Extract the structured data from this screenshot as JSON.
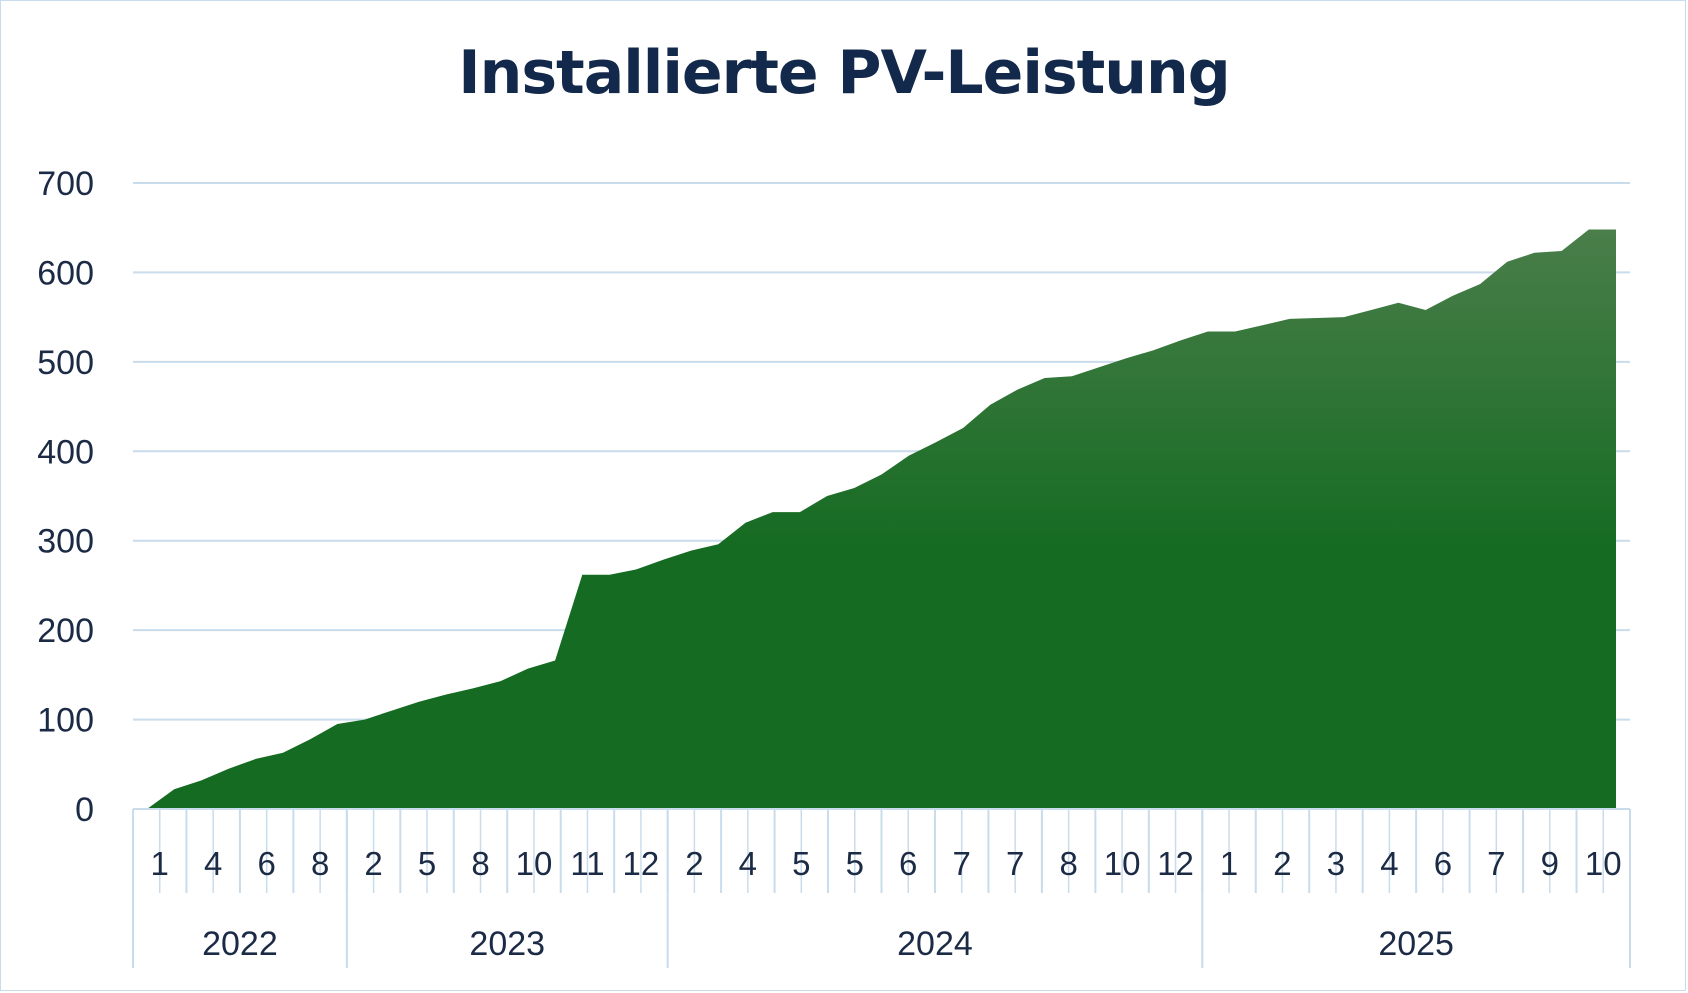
{
  "chart_data": {
    "type": "area",
    "title": "Installierte PV-Leistung",
    "xlabel": "",
    "ylabel": "",
    "ylim": [
      0,
      700
    ],
    "yticks": [
      0,
      100,
      200,
      300,
      400,
      500,
      600,
      700
    ],
    "grid": true,
    "legend": "none",
    "x_month_labels": [
      "1",
      "4",
      "6",
      "8",
      "2",
      "5",
      "8",
      "10",
      "11",
      "12",
      "2",
      "4",
      "5",
      "5",
      "6",
      "7",
      "7",
      "8",
      "10",
      "12",
      "1",
      "2",
      "3",
      "4",
      "6",
      "7",
      "9",
      "10"
    ],
    "years": [
      {
        "label": "2022",
        "start_label_index": 0,
        "label_count": 4
      },
      {
        "label": "2023",
        "start_label_index": 4,
        "label_count": 6
      },
      {
        "label": "2024",
        "start_label_index": 10,
        "label_count": 10
      },
      {
        "label": "2025",
        "start_label_index": 20,
        "label_count": 8
      }
    ],
    "series": [
      {
        "values": [
          0,
          22,
          32,
          45,
          56,
          63,
          78,
          95,
          100,
          110,
          120,
          128,
          135,
          143,
          157,
          166,
          262,
          262,
          268,
          279,
          289,
          296,
          320,
          332,
          332,
          350,
          359,
          374,
          395,
          410,
          426,
          452,
          469,
          482,
          484,
          494,
          504,
          513,
          524,
          534,
          534,
          541,
          548,
          549,
          550,
          558,
          566,
          558,
          574,
          587,
          612,
          622,
          624,
          648,
          648
        ],
        "color": "#156b22",
        "color_top": "#4a7e4a"
      }
    ]
  }
}
